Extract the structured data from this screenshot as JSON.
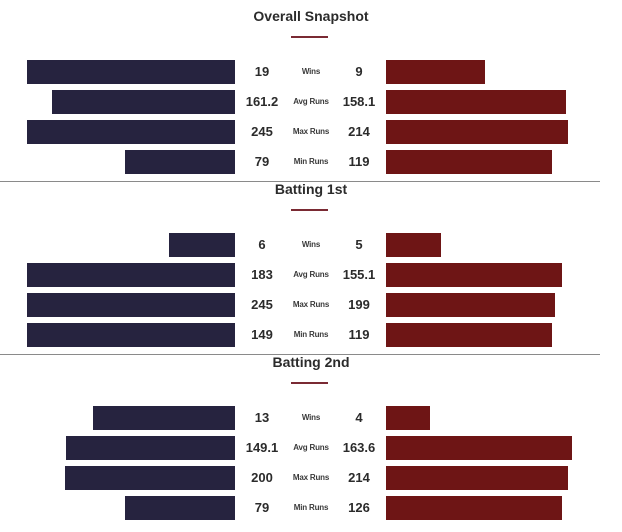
{
  "colors": {
    "left_bar": "#26233f",
    "right_bar": "#6e1515",
    "accent": "#7a2a33"
  },
  "sections": [
    {
      "title": "Overall Snapshot",
      "rows": [
        {
          "metric": "Wins",
          "left": "19",
          "right": "9"
        },
        {
          "metric": "Avg Runs",
          "left": "161.2",
          "right": "158.1"
        },
        {
          "metric": "Max Runs",
          "left": "245",
          "right": "214"
        },
        {
          "metric": "Min Runs",
          "left": "79",
          "right": "119"
        }
      ]
    },
    {
      "title": "Batting 1st",
      "rows": [
        {
          "metric": "Wins",
          "left": "6",
          "right": "5"
        },
        {
          "metric": "Avg Runs",
          "left": "183",
          "right": "155.1"
        },
        {
          "metric": "Max Runs",
          "left": "245",
          "right": "199"
        },
        {
          "metric": "Min Runs",
          "left": "149",
          "right": "119"
        }
      ]
    },
    {
      "title": "Batting 2nd",
      "rows": [
        {
          "metric": "Wins",
          "left": "13",
          "right": "4"
        },
        {
          "metric": "Avg Runs",
          "left": "149.1",
          "right": "163.6"
        },
        {
          "metric": "Max Runs",
          "left": "200",
          "right": "214"
        },
        {
          "metric": "Min Runs",
          "left": "79",
          "right": "126"
        }
      ]
    }
  ]
}
